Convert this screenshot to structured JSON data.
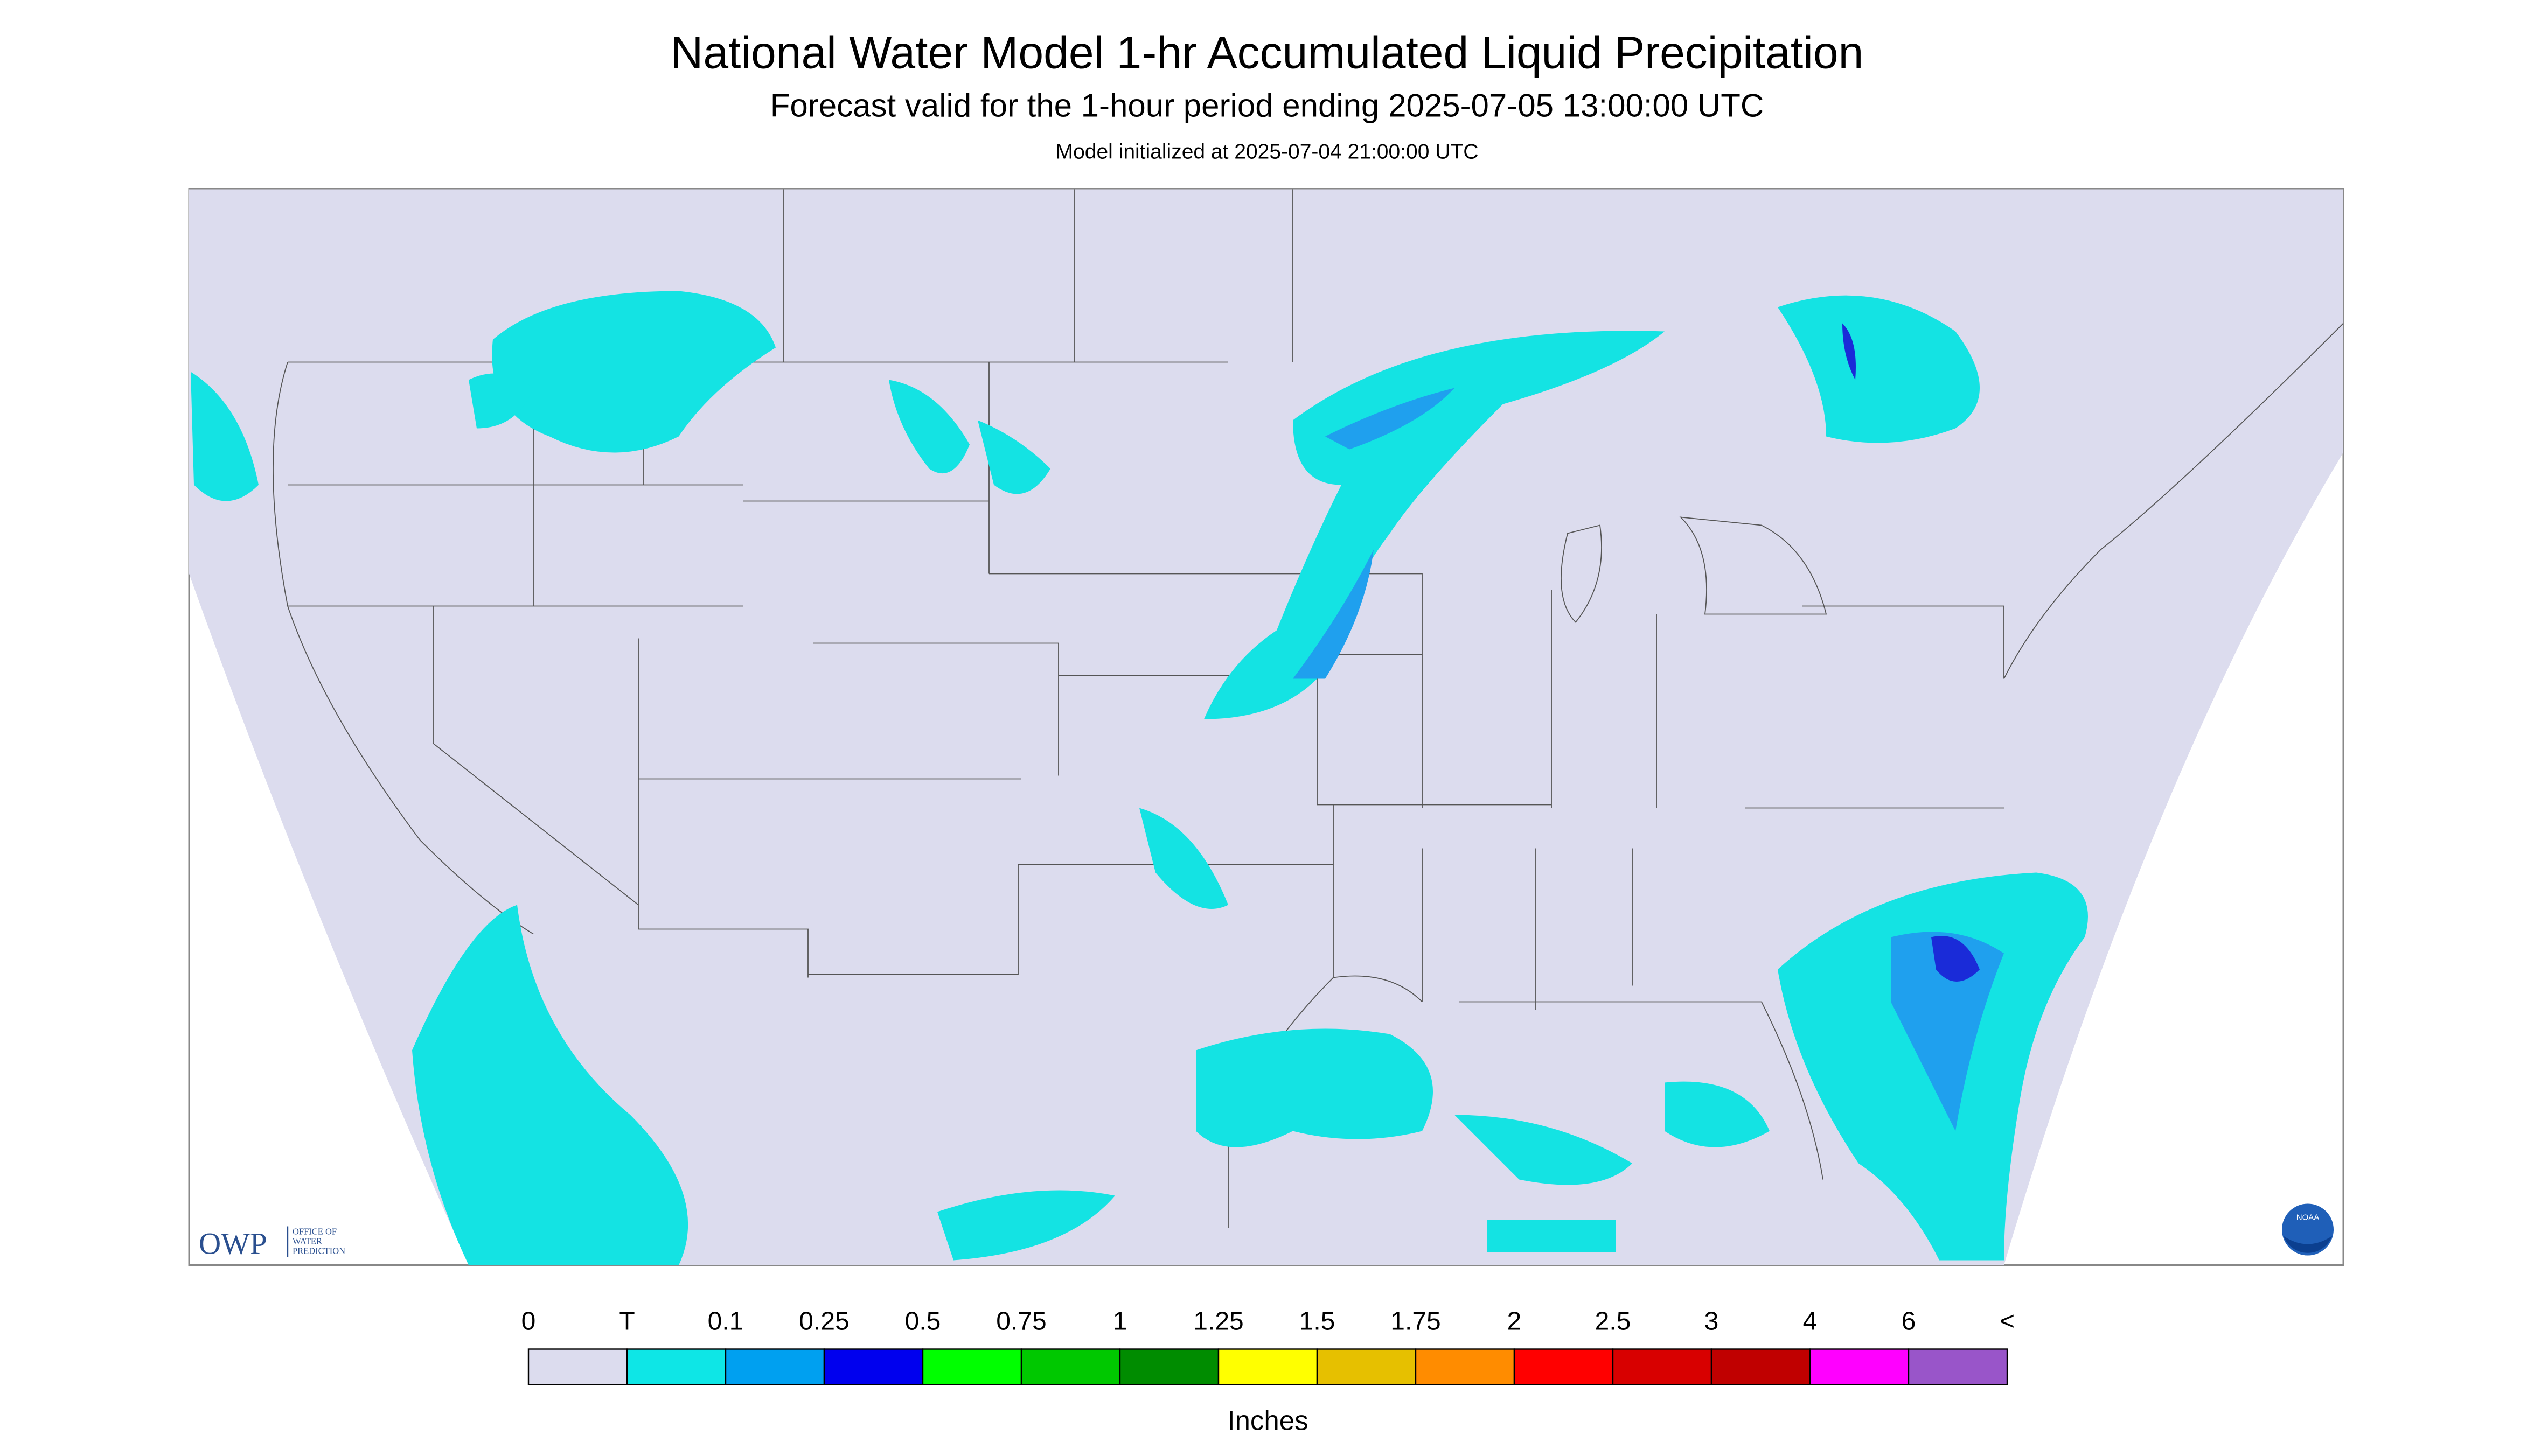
{
  "header": {
    "title": "National Water Model 1-hr Accumulated Liquid Precipitation",
    "subtitle": "Forecast valid for the 1-hour period ending 2025-07-05 13:00:00 UTC",
    "init": "Model initialized at 2025-07-04 21:00:00 UTC"
  },
  "logo": {
    "name": "OWP",
    "line1": "OFFICE OF",
    "line2": "WATER",
    "line3": "PREDICTION",
    "noaa": "NOAA"
  },
  "legend": {
    "labels": [
      "0",
      "T",
      "0.1",
      "0.25",
      "0.5",
      "0.75",
      "1",
      "1.25",
      "1.5",
      "1.75",
      "2",
      "2.5",
      "3",
      "4",
      "6",
      "<"
    ],
    "colors": [
      "#dcdcee",
      "#0ee6e6",
      "#00a0f0",
      "#0000ee",
      "#00ff00",
      "#00c800",
      "#008c00",
      "#ffff00",
      "#e6c000",
      "#ff8c00",
      "#ff0000",
      "#d80000",
      "#c00000",
      "#ff00ff",
      "#9955c9"
    ],
    "unit": "Inches"
  }
}
